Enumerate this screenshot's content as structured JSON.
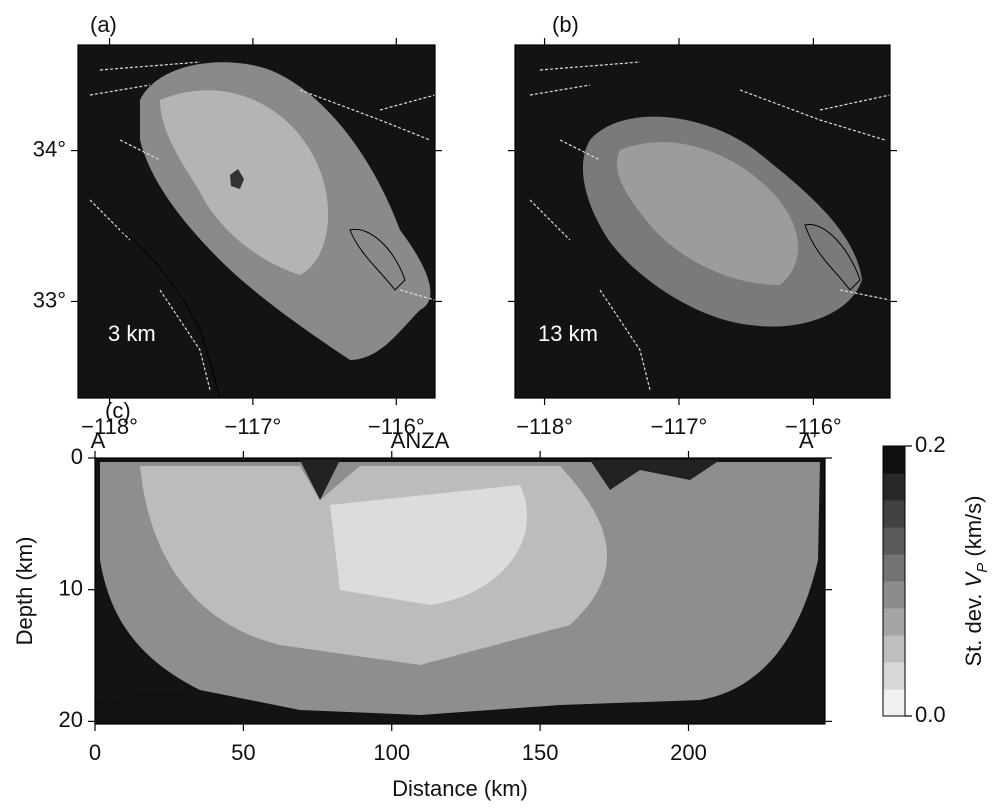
{
  "chart_data": [
    {
      "type": "map",
      "title": "(a)",
      "annotation": "3 km",
      "xlim": [
        -118.22,
        -115.73
      ],
      "ylim": [
        32.36,
        34.7
      ],
      "xticks": [
        {
          "value": -118,
          "label": "−118°"
        },
        {
          "value": -117,
          "label": "−117°"
        },
        {
          "value": -116,
          "label": "−116°"
        }
      ],
      "yticks": [
        {
          "value": 33,
          "label": "33°"
        },
        {
          "value": 34,
          "label": "34°"
        }
      ]
    },
    {
      "type": "map",
      "title": "(b)",
      "annotation": "13 km",
      "xlim": [
        -118.22,
        -115.43
      ],
      "ylim": [
        32.36,
        34.7
      ],
      "xticks": [
        {
          "value": -118,
          "label": "−118°"
        },
        {
          "value": -117,
          "label": "−117°"
        },
        {
          "value": -116,
          "label": "−116°"
        }
      ],
      "yticks": [
        33,
        34
      ]
    },
    {
      "type": "heatmap",
      "title": "(c)",
      "annotations": [
        "A",
        "ANZA",
        "A’"
      ],
      "xlabel": "Distance (km)",
      "ylabel": "Depth (km)",
      "xlim": [
        0,
        246
      ],
      "ylim": [
        0,
        20.2
      ],
      "y_inverted": true,
      "xticks": [
        0,
        50,
        100,
        150,
        200
      ],
      "yticks": [
        0,
        10,
        20
      ],
      "colorbar": {
        "label": [
          "St. dev. ",
          "V",
          "P",
          " (km/s)"
        ],
        "lim": [
          0,
          0.2
        ],
        "ticks": [
          {
            "value": 0,
            "label": "0.0"
          },
          0.2
        ]
      }
    }
  ]
}
